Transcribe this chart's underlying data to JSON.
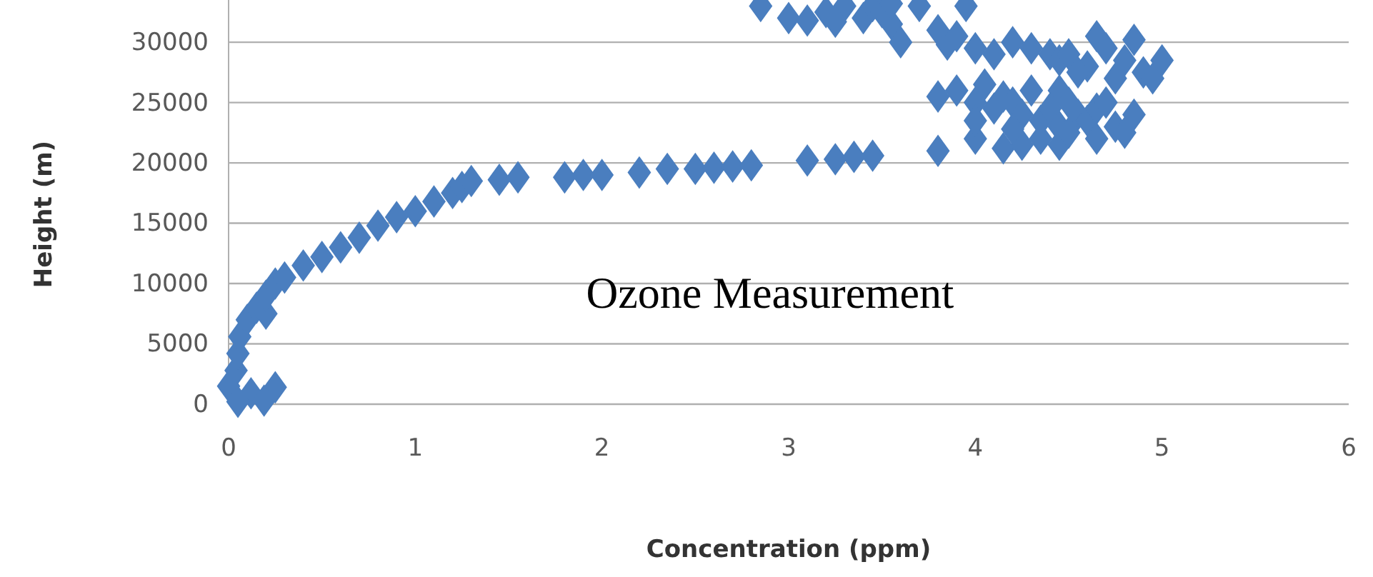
{
  "chart_data": {
    "type": "scatter",
    "xlabel": "Concentration (ppm)",
    "ylabel": "Height (m)",
    "annotations": [
      "Ozone Measurement"
    ],
    "xlim": [
      0,
      6
    ],
    "xticks": [
      0,
      1,
      2,
      3,
      4,
      5,
      6
    ],
    "ylim": [
      0,
      33500
    ],
    "yticks": [
      0,
      5000,
      10000,
      15000,
      20000,
      25000,
      30000
    ],
    "grid": "y",
    "marker": "diamond",
    "series": [
      {
        "color": "#4a7ebf",
        "x": [
          0.0,
          0.12,
          0.25,
          0.05,
          0.19,
          0.04,
          0.05,
          0.06,
          0.1,
          0.15,
          0.2,
          0.2,
          0.25,
          0.3,
          0.4,
          0.5,
          0.6,
          0.7,
          0.8,
          0.9,
          1.0,
          1.1,
          1.2,
          1.25,
          1.3,
          1.45,
          1.55,
          1.8,
          1.9,
          2.0,
          2.2,
          2.35,
          2.5,
          2.6,
          2.7,
          2.8,
          3.1,
          3.25,
          3.35,
          3.45,
          3.8,
          2.85,
          3.0,
          3.1,
          3.2,
          3.3,
          3.25,
          3.4,
          3.45,
          3.5,
          3.55,
          3.6,
          3.55,
          3.7,
          3.8,
          3.85,
          3.9,
          3.95,
          4.0,
          4.1,
          4.2,
          4.3,
          4.4,
          4.45,
          4.5,
          4.6,
          4.65,
          4.7,
          4.75,
          4.8,
          4.85,
          4.9,
          4.95,
          5.0,
          4.55,
          4.45,
          3.8,
          3.9,
          4.0,
          4.05,
          4.1,
          4.15,
          4.2,
          4.25,
          4.3,
          4.35,
          4.4,
          4.45,
          4.5,
          4.55,
          4.6,
          4.65,
          4.7,
          4.75,
          4.8,
          4.85,
          4.0,
          4.15,
          4.25,
          4.35,
          4.45,
          4.5,
          4.65,
          4.0,
          4.2
        ],
        "values": [
          1500,
          900,
          1400,
          200,
          300,
          2800,
          4200,
          5600,
          7000,
          8000,
          7500,
          9000,
          10000,
          10500,
          11500,
          12200,
          13000,
          13800,
          14800,
          15500,
          16000,
          16800,
          17500,
          18000,
          18500,
          18600,
          18800,
          18800,
          19000,
          19000,
          19200,
          19500,
          19500,
          19600,
          19700,
          19800,
          20200,
          20300,
          20500,
          20600,
          21000,
          33000,
          32000,
          31800,
          32500,
          33000,
          31700,
          32000,
          33000,
          32500,
          31500,
          30000,
          33200,
          33000,
          31000,
          29800,
          30500,
          33000,
          29500,
          29000,
          30000,
          29500,
          29000,
          28500,
          29000,
          28000,
          30500,
          29500,
          27000,
          28500,
          30200,
          27500,
          27000,
          28500,
          27500,
          26000,
          25500,
          26000,
          25000,
          26500,
          24500,
          25500,
          25000,
          24000,
          26000,
          23500,
          24500,
          23000,
          25000,
          24000,
          23500,
          24500,
          25000,
          23000,
          22500,
          24000,
          22000,
          21200,
          21500,
          22000,
          21500,
          22500,
          22000,
          23500,
          22800
        ]
      }
    ]
  }
}
